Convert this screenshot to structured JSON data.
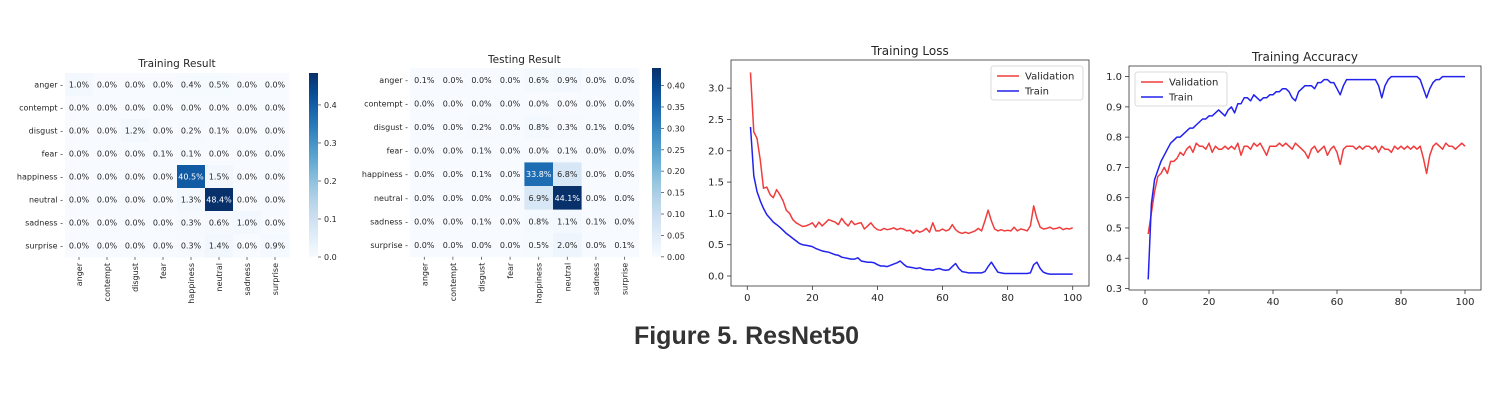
{
  "caption": "Figure 5. ResNet50",
  "colors": {
    "cmap_low": "#f7fbff",
    "cmap_high": "#08306b",
    "validation": "#f03c3c",
    "train": "#2222ee"
  },
  "chart_data": [
    {
      "id": "training-result",
      "type": "heatmap",
      "title": "Training Result",
      "rows": [
        "anger",
        "contempt",
        "disgust",
        "fear",
        "happiness",
        "neutral",
        "sadness",
        "surprise"
      ],
      "cols": [
        "anger",
        "contempt",
        "disgust",
        "fear",
        "happiness",
        "neutral",
        "sadness",
        "surprise"
      ],
      "values": [
        [
          1.0,
          0.0,
          0.0,
          0.0,
          0.4,
          0.5,
          0.0,
          0.0
        ],
        [
          0.0,
          0.0,
          0.0,
          0.0,
          0.0,
          0.0,
          0.0,
          0.0
        ],
        [
          0.0,
          0.0,
          1.2,
          0.0,
          0.2,
          0.1,
          0.0,
          0.0
        ],
        [
          0.0,
          0.0,
          0.0,
          0.1,
          0.1,
          0.0,
          0.0,
          0.0
        ],
        [
          0.0,
          0.0,
          0.0,
          0.0,
          40.5,
          1.5,
          0.0,
          0.0
        ],
        [
          0.0,
          0.0,
          0.0,
          0.0,
          1.3,
          48.4,
          0.0,
          0.0
        ],
        [
          0.0,
          0.0,
          0.0,
          0.0,
          0.3,
          0.6,
          1.0,
          0.0
        ],
        [
          0.0,
          0.0,
          0.0,
          0.0,
          0.3,
          1.4,
          0.0,
          0.9
        ]
      ],
      "cell_labels": [
        [
          "1.0%",
          "0.0%",
          "0.0%",
          "0.0%",
          "0.4%",
          "0.5%",
          "0.0%",
          "0.0%"
        ],
        [
          "0.0%",
          "0.0%",
          "0.0%",
          "0.0%",
          "0.0%",
          "0.0%",
          "0.0%",
          "0.0%"
        ],
        [
          "0.0%",
          "0.0%",
          "1.2%",
          "0.0%",
          "0.2%",
          "0.1%",
          "0.0%",
          "0.0%"
        ],
        [
          "0.0%",
          "0.0%",
          "0.0%",
          "0.1%",
          "0.1%",
          "0.0%",
          "0.0%",
          "0.0%"
        ],
        [
          "0.0%",
          "0.0%",
          "0.0%",
          "0.0%",
          "40.5%",
          "1.5%",
          "0.0%",
          "0.0%"
        ],
        [
          "0.0%",
          "0.0%",
          "0.0%",
          "0.0%",
          "1.3%",
          "48.4%",
          "0.0%",
          "0.0%"
        ],
        [
          "0.0%",
          "0.0%",
          "0.0%",
          "0.0%",
          "0.3%",
          "0.6%",
          "1.0%",
          "0.0%"
        ],
        [
          "0.0%",
          "0.0%",
          "0.0%",
          "0.0%",
          "0.3%",
          "1.4%",
          "0.0%",
          "0.9%"
        ]
      ],
      "colorbar": {
        "min": 0.0,
        "max": 0.484,
        "ticks": [
          0.0,
          0.1,
          0.2,
          0.3,
          0.4
        ],
        "tick_labels": [
          "0.0",
          "0.1",
          "0.2",
          "0.3",
          "0.4"
        ]
      }
    },
    {
      "id": "testing-result",
      "type": "heatmap",
      "title": "Testing Result",
      "rows": [
        "anger",
        "contempt",
        "disgust",
        "fear",
        "happiness",
        "neutral",
        "sadness",
        "surprise"
      ],
      "cols": [
        "anger",
        "contempt",
        "disgust",
        "fear",
        "happiness",
        "neutral",
        "sadness",
        "surprise"
      ],
      "values": [
        [
          0.1,
          0.0,
          0.0,
          0.0,
          0.6,
          0.9,
          0.0,
          0.0
        ],
        [
          0.0,
          0.0,
          0.0,
          0.0,
          0.0,
          0.0,
          0.0,
          0.0
        ],
        [
          0.0,
          0.0,
          0.2,
          0.0,
          0.8,
          0.3,
          0.1,
          0.0
        ],
        [
          0.0,
          0.0,
          0.1,
          0.0,
          0.0,
          0.1,
          0.0,
          0.0
        ],
        [
          0.0,
          0.0,
          0.1,
          0.0,
          33.8,
          6.8,
          0.0,
          0.0
        ],
        [
          0.0,
          0.0,
          0.0,
          0.0,
          6.9,
          44.1,
          0.0,
          0.0
        ],
        [
          0.0,
          0.0,
          0.1,
          0.0,
          0.8,
          1.1,
          0.1,
          0.0
        ],
        [
          0.0,
          0.0,
          0.0,
          0.0,
          0.5,
          2.0,
          0.0,
          0.1
        ]
      ],
      "cell_labels": [
        [
          "0.1%",
          "0.0%",
          "0.0%",
          "0.0%",
          "0.6%",
          "0.9%",
          "0.0%",
          "0.0%"
        ],
        [
          "0.0%",
          "0.0%",
          "0.0%",
          "0.0%",
          "0.0%",
          "0.0%",
          "0.0%",
          "0.0%"
        ],
        [
          "0.0%",
          "0.0%",
          "0.2%",
          "0.0%",
          "0.8%",
          "0.3%",
          "0.1%",
          "0.0%"
        ],
        [
          "0.0%",
          "0.0%",
          "0.1%",
          "0.0%",
          "0.0%",
          "0.1%",
          "0.0%",
          "0.0%"
        ],
        [
          "0.0%",
          "0.0%",
          "0.1%",
          "0.0%",
          "33.8%",
          "6.8%",
          "0.0%",
          "0.0%"
        ],
        [
          "0.0%",
          "0.0%",
          "0.0%",
          "0.0%",
          "6.9%",
          "44.1%",
          "0.0%",
          "0.0%"
        ],
        [
          "0.0%",
          "0.0%",
          "0.1%",
          "0.0%",
          "0.8%",
          "1.1%",
          "0.1%",
          "0.0%"
        ],
        [
          "0.0%",
          "0.0%",
          "0.0%",
          "0.0%",
          "0.5%",
          "2.0%",
          "0.0%",
          "0.1%"
        ]
      ],
      "colorbar": {
        "min": 0.0,
        "max": 0.441,
        "ticks": [
          0.0,
          0.05,
          0.1,
          0.15,
          0.2,
          0.25,
          0.3,
          0.35,
          0.4
        ],
        "tick_labels": [
          "0.00",
          "0.05",
          "0.10",
          "0.15",
          "0.20",
          "0.25",
          "0.30",
          "0.35",
          "0.40"
        ]
      }
    },
    {
      "id": "training-loss",
      "type": "line",
      "title": "Training Loss",
      "xlabel": "",
      "ylabel": "",
      "xlim": [
        -5,
        105
      ],
      "ylim": [
        -0.16,
        3.45
      ],
      "xticks": [
        0,
        20,
        40,
        60,
        80,
        100
      ],
      "yticks": [
        0.0,
        0.5,
        1.0,
        1.5,
        2.0,
        2.5,
        3.0
      ],
      "ytick_labels": [
        "0.0",
        "0.5",
        "1.0",
        "1.5",
        "2.0",
        "2.5",
        "3.0"
      ],
      "legend": "top-right",
      "x": [
        1,
        2,
        3,
        4,
        5,
        6,
        7,
        8,
        9,
        10,
        11,
        12,
        13,
        14,
        15,
        16,
        17,
        18,
        19,
        20,
        21,
        22,
        23,
        24,
        25,
        26,
        27,
        28,
        29,
        30,
        31,
        32,
        33,
        34,
        35,
        36,
        37,
        38,
        39,
        40,
        41,
        42,
        43,
        44,
        45,
        46,
        47,
        48,
        49,
        50,
        51,
        52,
        53,
        54,
        55,
        56,
        57,
        58,
        59,
        60,
        61,
        62,
        63,
        64,
        65,
        66,
        67,
        68,
        69,
        70,
        71,
        72,
        73,
        74,
        75,
        76,
        77,
        78,
        79,
        80,
        81,
        82,
        83,
        84,
        85,
        86,
        87,
        88,
        89,
        90,
        91,
        92,
        93,
        94,
        95,
        96,
        97,
        98,
        99,
        100
      ],
      "series": [
        {
          "name": "Validation",
          "color_key": "validation",
          "values": [
            3.25,
            2.3,
            2.2,
            1.85,
            1.4,
            1.42,
            1.3,
            1.25,
            1.38,
            1.3,
            1.2,
            1.05,
            1.0,
            0.9,
            0.85,
            0.82,
            0.79,
            0.8,
            0.82,
            0.85,
            0.78,
            0.86,
            0.8,
            0.85,
            0.9,
            0.88,
            0.86,
            0.82,
            0.92,
            0.85,
            0.8,
            0.88,
            0.82,
            0.84,
            0.85,
            0.75,
            0.8,
            0.85,
            0.78,
            0.74,
            0.73,
            0.76,
            0.74,
            0.75,
            0.77,
            0.74,
            0.76,
            0.75,
            0.72,
            0.73,
            0.68,
            0.73,
            0.7,
            0.72,
            0.76,
            0.7,
            0.85,
            0.72,
            0.72,
            0.75,
            0.72,
            0.74,
            0.82,
            0.74,
            0.7,
            0.68,
            0.7,
            0.68,
            0.7,
            0.72,
            0.76,
            0.72,
            0.88,
            1.05,
            0.88,
            0.75,
            0.72,
            0.74,
            0.72,
            0.73,
            0.72,
            0.78,
            0.72,
            0.75,
            0.74,
            0.72,
            0.8,
            1.12,
            0.92,
            0.78,
            0.75,
            0.76,
            0.78,
            0.75,
            0.76,
            0.78,
            0.74,
            0.76,
            0.75,
            0.77
          ]
        },
        {
          "name": "Train",
          "color_key": "train",
          "values": [
            2.38,
            1.6,
            1.35,
            1.2,
            1.08,
            0.98,
            0.92,
            0.86,
            0.82,
            0.78,
            0.73,
            0.68,
            0.64,
            0.6,
            0.56,
            0.52,
            0.5,
            0.49,
            0.48,
            0.47,
            0.44,
            0.42,
            0.4,
            0.39,
            0.38,
            0.36,
            0.34,
            0.33,
            0.3,
            0.29,
            0.28,
            0.27,
            0.27,
            0.29,
            0.24,
            0.23,
            0.22,
            0.22,
            0.21,
            0.18,
            0.16,
            0.16,
            0.15,
            0.17,
            0.19,
            0.21,
            0.24,
            0.19,
            0.15,
            0.14,
            0.13,
            0.12,
            0.13,
            0.11,
            0.1,
            0.1,
            0.09,
            0.11,
            0.12,
            0.1,
            0.09,
            0.1,
            0.15,
            0.2,
            0.12,
            0.07,
            0.06,
            0.05,
            0.05,
            0.05,
            0.05,
            0.05,
            0.07,
            0.15,
            0.22,
            0.14,
            0.06,
            0.05,
            0.04,
            0.04,
            0.04,
            0.04,
            0.04,
            0.04,
            0.04,
            0.04,
            0.05,
            0.18,
            0.22,
            0.12,
            0.06,
            0.04,
            0.03,
            0.03,
            0.03,
            0.03,
            0.03,
            0.03,
            0.03,
            0.03
          ]
        }
      ]
    },
    {
      "id": "training-accuracy",
      "type": "line",
      "title": "Training Accuracy",
      "xlabel": "",
      "ylabel": "",
      "xlim": [
        -5,
        105
      ],
      "ylim": [
        0.295,
        1.035
      ],
      "xticks": [
        0,
        20,
        40,
        60,
        80,
        100
      ],
      "yticks": [
        0.3,
        0.4,
        0.5,
        0.6,
        0.7,
        0.8,
        0.9,
        1.0
      ],
      "ytick_labels": [
        "0.3",
        "0.4",
        "0.5",
        "0.6",
        "0.7",
        "0.8",
        "0.9",
        "1.0"
      ],
      "legend": "top-left",
      "x": [
        1,
        2,
        3,
        4,
        5,
        6,
        7,
        8,
        9,
        10,
        11,
        12,
        13,
        14,
        15,
        16,
        17,
        18,
        19,
        20,
        21,
        22,
        23,
        24,
        25,
        26,
        27,
        28,
        29,
        30,
        31,
        32,
        33,
        34,
        35,
        36,
        37,
        38,
        39,
        40,
        41,
        42,
        43,
        44,
        45,
        46,
        47,
        48,
        49,
        50,
        51,
        52,
        53,
        54,
        55,
        56,
        57,
        58,
        59,
        60,
        61,
        62,
        63,
        64,
        65,
        66,
        67,
        68,
        69,
        70,
        71,
        72,
        73,
        74,
        75,
        76,
        77,
        78,
        79,
        80,
        81,
        82,
        83,
        84,
        85,
        86,
        87,
        88,
        89,
        90,
        91,
        92,
        93,
        94,
        95,
        96,
        97,
        98,
        99,
        100
      ],
      "series": [
        {
          "name": "Validation",
          "color_key": "validation",
          "values": [
            0.48,
            0.55,
            0.62,
            0.67,
            0.68,
            0.7,
            0.68,
            0.72,
            0.72,
            0.73,
            0.75,
            0.74,
            0.76,
            0.77,
            0.75,
            0.78,
            0.77,
            0.77,
            0.76,
            0.78,
            0.75,
            0.77,
            0.76,
            0.76,
            0.77,
            0.76,
            0.77,
            0.76,
            0.78,
            0.74,
            0.77,
            0.77,
            0.76,
            0.78,
            0.77,
            0.78,
            0.76,
            0.74,
            0.77,
            0.77,
            0.77,
            0.78,
            0.77,
            0.78,
            0.77,
            0.76,
            0.78,
            0.77,
            0.76,
            0.75,
            0.73,
            0.76,
            0.77,
            0.75,
            0.76,
            0.77,
            0.74,
            0.76,
            0.77,
            0.75,
            0.71,
            0.76,
            0.77,
            0.77,
            0.77,
            0.76,
            0.77,
            0.76,
            0.77,
            0.77,
            0.76,
            0.77,
            0.75,
            0.77,
            0.76,
            0.76,
            0.75,
            0.77,
            0.76,
            0.77,
            0.76,
            0.77,
            0.76,
            0.77,
            0.76,
            0.77,
            0.73,
            0.68,
            0.74,
            0.77,
            0.78,
            0.77,
            0.76,
            0.78,
            0.77,
            0.77,
            0.76,
            0.77,
            0.78,
            0.77
          ]
        },
        {
          "name": "Train",
          "color_key": "train",
          "values": [
            0.33,
            0.58,
            0.66,
            0.69,
            0.72,
            0.74,
            0.76,
            0.78,
            0.79,
            0.8,
            0.8,
            0.81,
            0.82,
            0.83,
            0.83,
            0.84,
            0.85,
            0.86,
            0.86,
            0.87,
            0.87,
            0.88,
            0.89,
            0.88,
            0.87,
            0.89,
            0.9,
            0.88,
            0.91,
            0.91,
            0.93,
            0.93,
            0.92,
            0.94,
            0.93,
            0.92,
            0.93,
            0.93,
            0.94,
            0.94,
            0.95,
            0.95,
            0.96,
            0.96,
            0.95,
            0.93,
            0.92,
            0.95,
            0.96,
            0.97,
            0.97,
            0.97,
            0.96,
            0.98,
            0.98,
            0.99,
            0.99,
            0.98,
            0.98,
            0.96,
            0.94,
            0.97,
            0.99,
            0.99,
            0.99,
            0.99,
            0.99,
            0.99,
            0.99,
            0.99,
            0.99,
            0.99,
            0.97,
            0.93,
            0.97,
            0.99,
            1.0,
            1.0,
            1.0,
            1.0,
            1.0,
            1.0,
            1.0,
            1.0,
            1.0,
            0.99,
            0.96,
            0.93,
            0.96,
            0.98,
            0.99,
            0.99,
            1.0,
            1.0,
            1.0,
            1.0,
            1.0,
            1.0,
            1.0,
            1.0
          ]
        }
      ]
    }
  ]
}
